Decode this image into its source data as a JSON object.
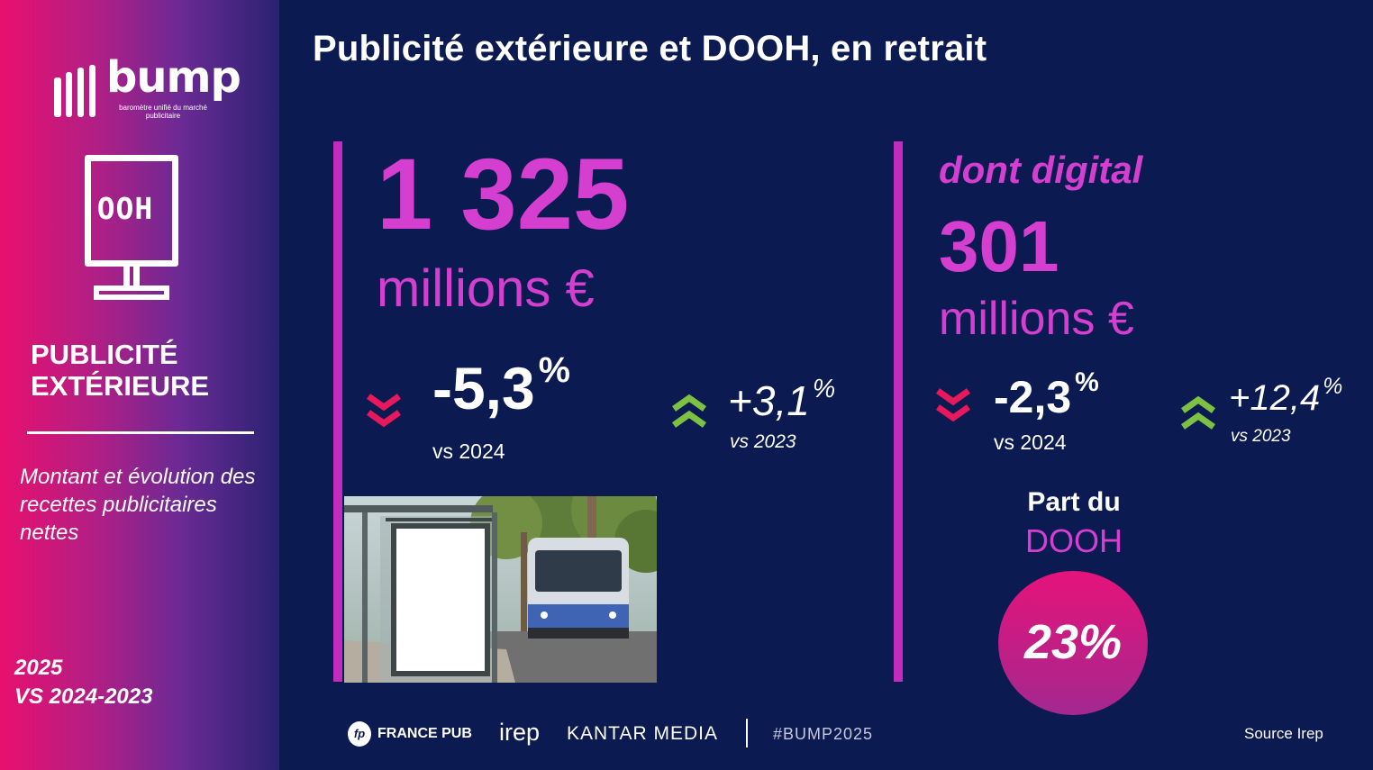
{
  "sidebar": {
    "logo_word": "bump",
    "logo_tagline": "baromètre unifié du marché publicitaire",
    "icon_text": "OOH",
    "category_title_line1": "PUBLICITÉ",
    "category_title_line2": "EXTÉRIEURE",
    "description": "Montant et évolution des recettes publicitaires nettes",
    "period_line1": "2025",
    "period_line2": "VS 2024-2023"
  },
  "main": {
    "title": "Publicité extérieure et DOOH, en retrait",
    "total": {
      "value": "1 325",
      "unit": "millions €",
      "change_1": "-5,3",
      "change_1_unit": "%",
      "change_1_label": "vs 2024",
      "change_2": "+3,1",
      "change_2_unit": "%",
      "change_2_label": "vs 2023"
    },
    "digital": {
      "label": "dont digital",
      "value": "301",
      "unit": "millions €",
      "change_1": "-2,3",
      "change_1_unit": "%",
      "change_1_label": "vs 2024",
      "change_2": "+12,4",
      "change_2_unit": "%",
      "change_2_label": "vs 2023"
    },
    "share": {
      "label_line1": "Part du",
      "label_line2": "DOOH",
      "value": "23%"
    }
  },
  "footer": {
    "fp_mark": "fp",
    "francepub": "FRANCE PUB",
    "irep": "irep",
    "kantar": "KANTAR MEDIA",
    "hashtag": "#BUMP2025",
    "source": "Source Irep"
  },
  "colors": {
    "background": "#0c1a52",
    "magenta": "#d43fcf",
    "down_arrow": "#e8185c",
    "up_arrow": "#7dc142",
    "circle_top": "#e5137a",
    "circle_bottom": "#a3288f"
  },
  "icons": {
    "down": "double-chevron-down-icon",
    "up": "double-chevron-up-icon"
  }
}
